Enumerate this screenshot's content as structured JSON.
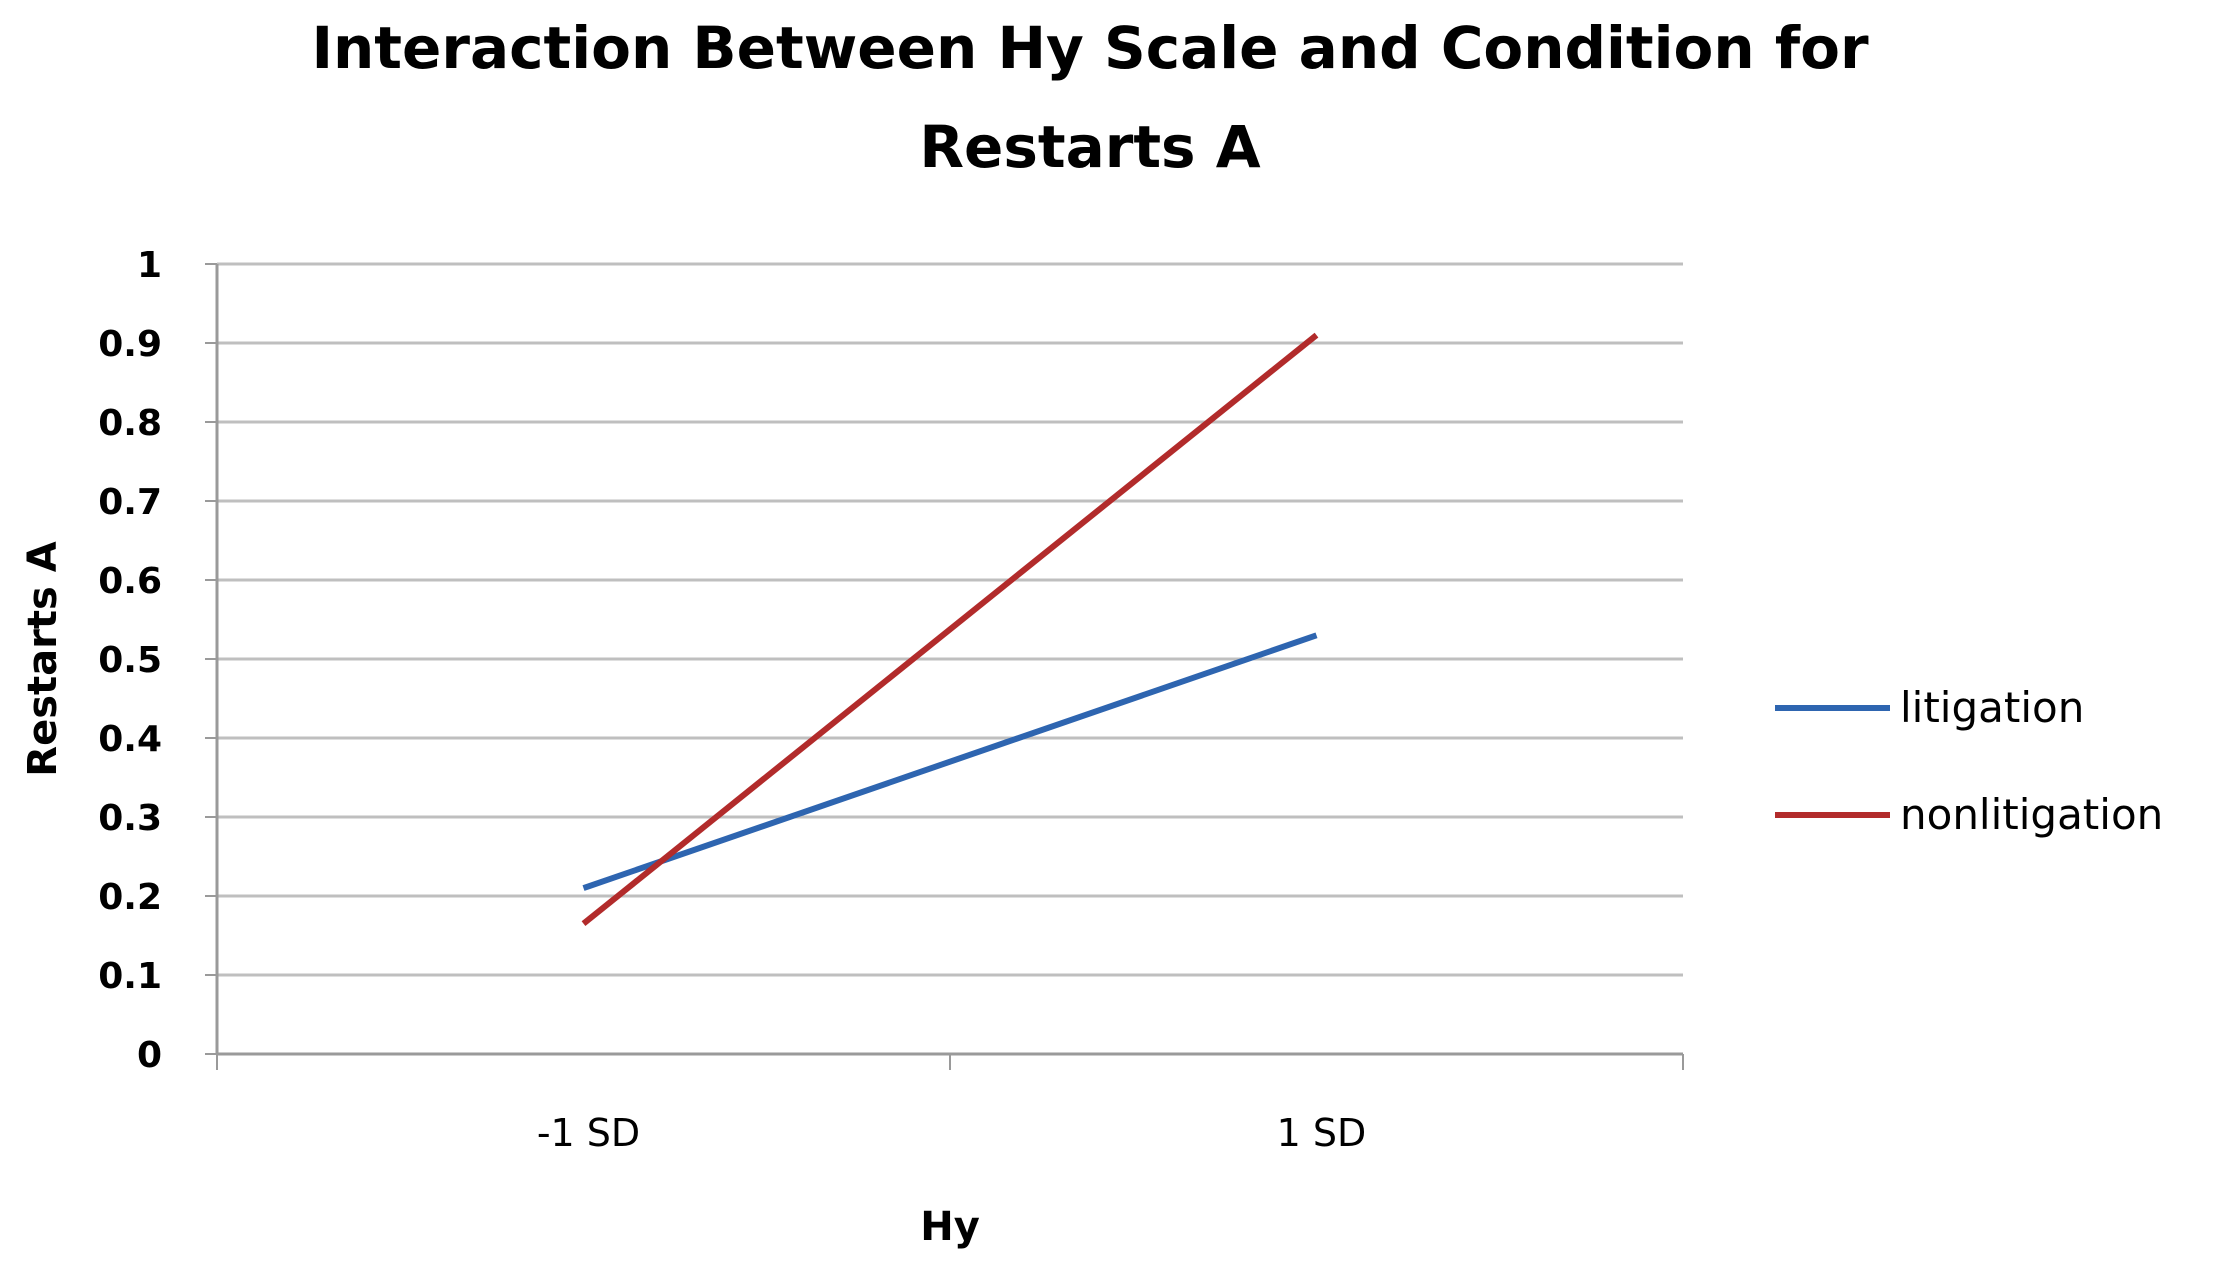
{
  "chart_data": {
    "type": "line",
    "title_lines": [
      "Interaction Between Hy Scale and Condition for",
      "Restarts A"
    ],
    "xlabel": "Hy",
    "ylabel": "Restarts A",
    "categories": [
      "-1 SD",
      "1 SD"
    ],
    "yticks": [
      "0",
      "0.1",
      "0.2",
      "0.3",
      "0.4",
      "0.5",
      "0.6",
      "0.7",
      "0.8",
      "0.9",
      "1"
    ],
    "ylim": [
      0,
      1
    ],
    "grid": true,
    "legend_position": "right",
    "series": [
      {
        "name": "litigation",
        "values": [
          0.21,
          0.53
        ],
        "color": "#2e65b0"
      },
      {
        "name": "nonlitigation",
        "values": [
          0.165,
          0.91
        ],
        "color": "#b22b2b"
      }
    ]
  },
  "colors": {
    "grid": "#bfbfbf",
    "axis": "#9a9a9a"
  }
}
